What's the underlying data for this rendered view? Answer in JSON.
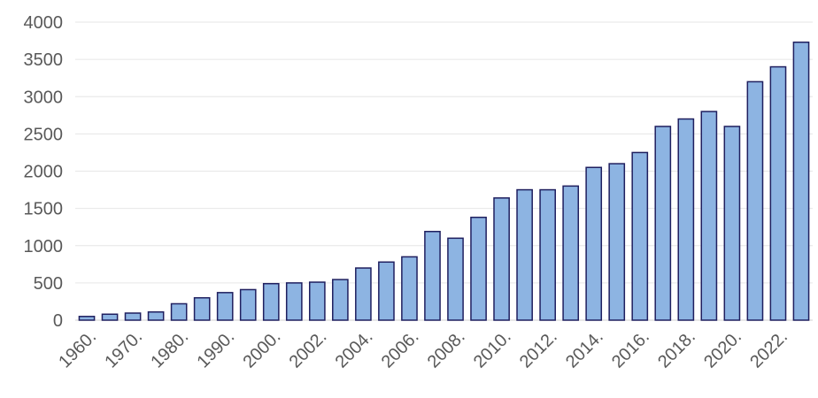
{
  "chart_data": {
    "type": "bar",
    "categories": [
      "1960.",
      null,
      "1970.",
      null,
      "1980.",
      null,
      "1990.",
      null,
      "2000.",
      null,
      "2002.",
      null,
      "2004.",
      null,
      "2006.",
      null,
      "2008.",
      null,
      "2010.",
      null,
      "2012.",
      null,
      "2014.",
      null,
      "2016.",
      null,
      "2018.",
      null,
      "2020.",
      null,
      "2022.",
      null
    ],
    "values": [
      50,
      80,
      95,
      110,
      220,
      300,
      370,
      410,
      490,
      500,
      510,
      545,
      700,
      780,
      850,
      1190,
      1100,
      1380,
      1640,
      1750,
      1750,
      1800,
      2050,
      2100,
      2250,
      2600,
      2700,
      2800,
      2600,
      3200,
      3400,
      3730
    ],
    "color": "#8db4e2",
    "ylim": [
      0,
      4000
    ],
    "yticks": [
      0,
      500,
      1000,
      1500,
      2000,
      2500,
      3000,
      3500,
      4000
    ],
    "grid": true
  }
}
